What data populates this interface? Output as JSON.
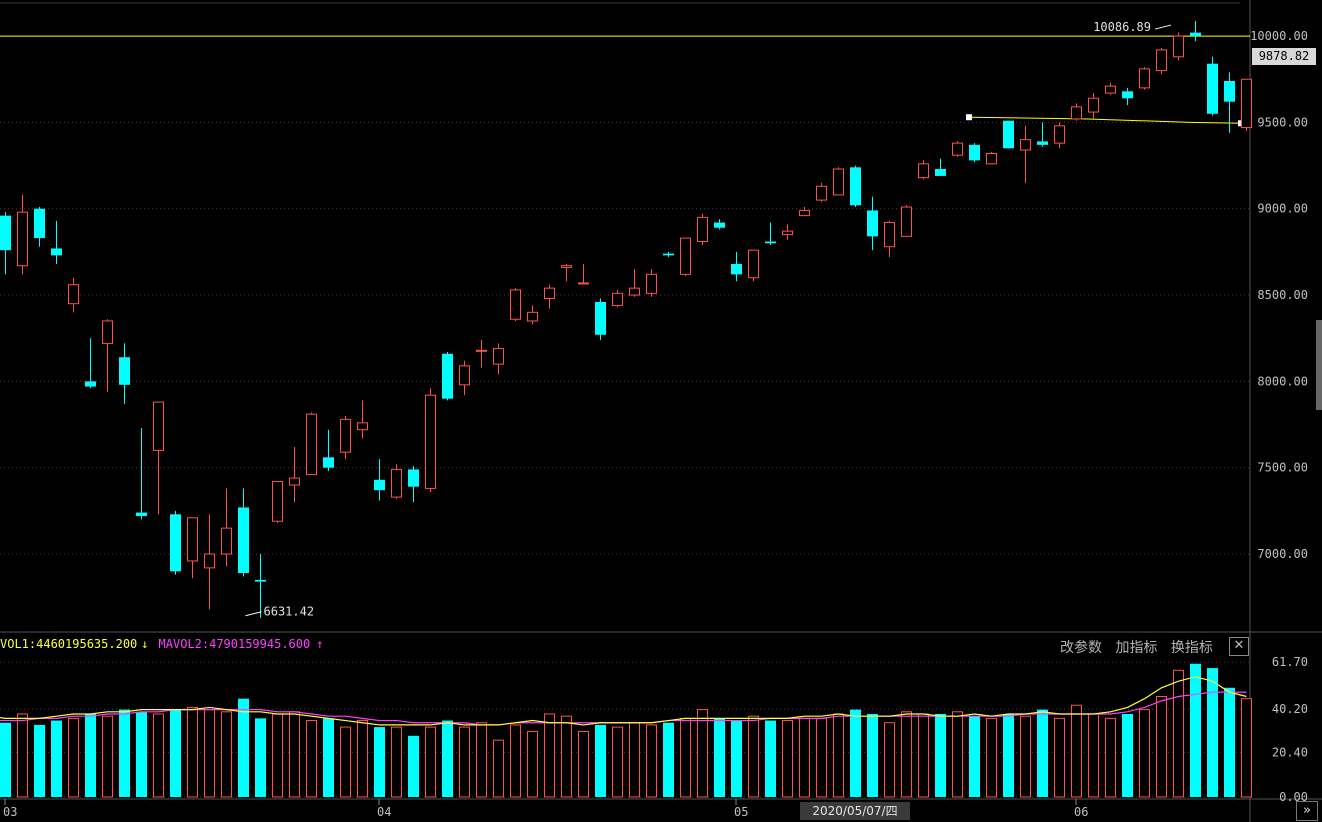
{
  "volume_indicator": {
    "mavol1": "VOL1:4460195635.200",
    "mavol1_arrow": "↓",
    "mavol2": "MAVOL2:4790159945.600",
    "mavol2_arrow": "↑"
  },
  "toolbar": {
    "change_params": "改参数",
    "add_indicator": "加指标",
    "switch_indicator": "换指标",
    "close": "✕"
  },
  "cursor_date": "2020/05/07/四",
  "current_price_label": "9878.82",
  "next_label": "»",
  "colors": {
    "up": "#ff5050",
    "down": "#00ffff",
    "ma1": "#ffff40",
    "ma2": "#ff40ff",
    "grid": "#404040",
    "hline": "#ffff00"
  },
  "chart_data": {
    "type": "candlestick",
    "price_axis": {
      "ticks": [
        "7000.00",
        "7500.00",
        "8000.00",
        "8500.00",
        "9000.00",
        "9500.00",
        "10000.00"
      ],
      "range": [
        6560,
        10180
      ]
    },
    "volume_axis": {
      "ticks": [
        "0.00",
        "20.40",
        "40.20",
        "61.70"
      ],
      "range": [
        0,
        65
      ]
    },
    "month_labels": [
      {
        "label": "03",
        "index": 0
      },
      {
        "label": "04",
        "index": 22
      },
      {
        "label": "05",
        "index": 43
      },
      {
        "label": "06",
        "index": 63
      }
    ],
    "annotations": {
      "high": "10086.89",
      "high_index": 69,
      "low": "6631.42",
      "low_index": 14
    },
    "reference_line_price": 10000,
    "candles": [
      [
        8960,
        8760,
        8980,
        8620,
        34
      ],
      [
        8670,
        8980,
        9080,
        8620,
        38
      ],
      [
        9000,
        8830,
        9010,
        8780,
        33
      ],
      [
        8770,
        8730,
        8930,
        8680,
        35
      ],
      [
        8450,
        8560,
        8600,
        8400,
        36
      ],
      [
        8000,
        7970,
        8250,
        7960,
        38
      ],
      [
        8220,
        8350,
        8360,
        7940,
        37
      ],
      [
        8140,
        7980,
        8220,
        7870,
        40
      ],
      [
        7240,
        7220,
        7730,
        7200,
        39
      ],
      [
        7600,
        7880,
        7880,
        7230,
        38
      ],
      [
        7230,
        6900,
        7250,
        6880,
        40
      ],
      [
        6960,
        7210,
        7210,
        6860,
        41
      ],
      [
        6920,
        7000,
        7230,
        6680,
        40
      ],
      [
        7000,
        7150,
        7380,
        6930,
        39
      ],
      [
        7270,
        6890,
        7380,
        6870,
        45
      ],
      [
        6850,
        6840,
        7000,
        6630,
        36
      ],
      [
        7190,
        7420,
        7420,
        7180,
        38
      ],
      [
        7400,
        7440,
        7620,
        7300,
        39
      ],
      [
        7460,
        7810,
        7820,
        7460,
        35
      ],
      [
        7560,
        7500,
        7720,
        7480,
        36
      ],
      [
        7590,
        7780,
        7800,
        7550,
        32
      ],
      [
        7720,
        7760,
        7890,
        7670,
        35
      ],
      [
        7430,
        7370,
        7550,
        7310,
        32
      ],
      [
        7330,
        7490,
        7520,
        7320,
        32
      ],
      [
        7490,
        7390,
        7510,
        7300,
        28
      ],
      [
        7380,
        7920,
        7960,
        7360,
        32
      ],
      [
        8160,
        7900,
        8170,
        7890,
        35
      ],
      [
        7980,
        8090,
        8120,
        7920,
        32
      ],
      [
        8180,
        8180,
        8240,
        8080,
        34
      ],
      [
        8100,
        8190,
        8220,
        8040,
        26
      ],
      [
        8360,
        8530,
        8540,
        8350,
        33
      ],
      [
        8350,
        8400,
        8440,
        8330,
        30
      ],
      [
        8480,
        8540,
        8560,
        8420,
        38
      ],
      [
        8660,
        8670,
        8680,
        8580,
        37
      ],
      [
        8570,
        8570,
        8680,
        8570,
        30
      ],
      [
        8460,
        8270,
        8480,
        8240,
        33
      ],
      [
        8440,
        8510,
        8530,
        8430,
        32
      ],
      [
        8500,
        8540,
        8650,
        8490,
        34
      ],
      [
        8510,
        8620,
        8650,
        8490,
        33
      ],
      [
        8740,
        8730,
        8750,
        8720,
        34
      ],
      [
        8620,
        8830,
        8830,
        8610,
        36
      ],
      [
        8810,
        8950,
        8970,
        8790,
        40
      ],
      [
        8920,
        8890,
        8940,
        8880,
        36
      ],
      [
        8680,
        8620,
        8750,
        8580,
        35
      ],
      [
        8600,
        8760,
        8760,
        8580,
        37
      ],
      [
        8810,
        8800,
        8920,
        8790,
        35
      ],
      [
        8850,
        8870,
        8910,
        8820,
        35
      ],
      [
        8960,
        8990,
        9010,
        8960,
        36
      ],
      [
        9050,
        9130,
        9150,
        9040,
        36
      ],
      [
        9080,
        9230,
        9240,
        9080,
        38
      ],
      [
        9240,
        9020,
        9250,
        9010,
        40
      ],
      [
        8990,
        8840,
        9070,
        8760,
        38
      ],
      [
        8780,
        8920,
        8930,
        8720,
        34
      ],
      [
        8840,
        9010,
        9020,
        8840,
        39
      ],
      [
        9180,
        9260,
        9280,
        9170,
        38
      ],
      [
        9230,
        9190,
        9290,
        9190,
        38
      ],
      [
        9310,
        9380,
        9390,
        9300,
        39
      ],
      [
        9370,
        9280,
        9380,
        9270,
        37
      ],
      [
        9260,
        9320,
        9330,
        9270,
        36
      ],
      [
        9510,
        9350,
        9510,
        9350,
        38
      ],
      [
        9340,
        9400,
        9480,
        9150,
        37
      ],
      [
        9390,
        9370,
        9500,
        9360,
        40
      ],
      [
        9380,
        9480,
        9500,
        9350,
        36
      ],
      [
        9520,
        9590,
        9610,
        9510,
        42
      ],
      [
        9560,
        9640,
        9670,
        9520,
        38
      ],
      [
        9670,
        9710,
        9730,
        9660,
        36
      ],
      [
        9680,
        9640,
        9700,
        9600,
        38
      ],
      [
        9700,
        9810,
        9820,
        9690,
        40
      ],
      [
        9800,
        9920,
        9930,
        9780,
        46
      ],
      [
        9880,
        10000,
        10020,
        9860,
        58
      ],
      [
        10020,
        10000,
        10087,
        9970,
        61
      ],
      [
        9840,
        9550,
        9880,
        9540,
        59
      ],
      [
        9740,
        9620,
        9790,
        9440,
        50
      ],
      [
        9470,
        9750,
        9750,
        9450,
        45
      ]
    ],
    "mavol1": [
      37,
      37,
      36,
      36,
      36,
      37,
      38,
      38,
      39,
      39,
      40,
      40,
      40,
      40,
      41,
      40,
      39,
      39,
      38,
      38,
      37,
      36,
      35,
      34,
      33,
      33,
      33,
      33,
      34,
      33,
      33,
      33,
      34,
      35,
      34,
      34,
      33,
      34,
      34,
      34,
      34,
      35,
      36,
      36,
      36,
      36,
      36,
      36,
      36,
      37,
      37,
      38,
      37,
      37,
      37,
      38,
      38,
      37,
      37,
      38,
      37,
      38,
      38,
      39,
      38,
      38,
      38,
      39,
      41,
      45,
      50,
      53,
      55,
      53,
      48,
      46
    ],
    "mavol2": [
      34,
      35,
      35,
      35,
      36,
      36,
      37,
      37,
      38,
      38,
      39,
      39,
      40,
      40,
      40,
      40,
      40,
      40,
      39,
      39,
      38,
      37,
      37,
      36,
      35,
      35,
      34,
      34,
      34,
      34,
      33,
      33,
      34,
      34,
      34,
      34,
      34,
      34,
      34,
      34,
      34,
      35,
      35,
      35,
      35,
      35,
      35,
      36,
      36,
      36,
      36,
      37,
      37,
      37,
      37,
      37,
      37,
      37,
      37,
      37,
      37,
      37,
      38,
      38,
      38,
      38,
      38,
      38,
      39,
      41,
      44,
      46,
      47,
      48,
      48,
      48
    ],
    "mavol_offset": 2
  }
}
